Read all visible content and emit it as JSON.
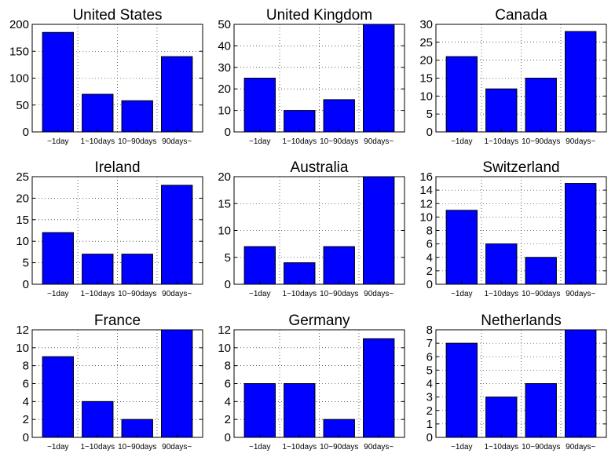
{
  "categories": [
    "~1day",
    "1~10days",
    "10~90days",
    "90days~"
  ],
  "bar_color": "#0000ff",
  "chart_data": [
    {
      "type": "bar",
      "title": "United States",
      "categories": [
        "~1day",
        "1~10days",
        "10~90days",
        "90days~"
      ],
      "values": [
        185,
        70,
        58,
        140
      ],
      "ylim": [
        0,
        200
      ],
      "yticks": [
        0,
        50,
        100,
        150,
        200
      ],
      "grid": true
    },
    {
      "type": "bar",
      "title": "United Kingdom",
      "categories": [
        "~1day",
        "1~10days",
        "10~90days",
        "90days~"
      ],
      "values": [
        25,
        10,
        15,
        50
      ],
      "ylim": [
        0,
        50
      ],
      "yticks": [
        0,
        10,
        20,
        30,
        40,
        50
      ],
      "grid": true
    },
    {
      "type": "bar",
      "title": "Canada",
      "categories": [
        "~1day",
        "1~10days",
        "10~90days",
        "90days~"
      ],
      "values": [
        21,
        12,
        15,
        28
      ],
      "ylim": [
        0,
        30
      ],
      "yticks": [
        0,
        5,
        10,
        15,
        20,
        25,
        30
      ],
      "grid": true
    },
    {
      "type": "bar",
      "title": "Ireland",
      "categories": [
        "~1day",
        "1~10days",
        "10~90days",
        "90days~"
      ],
      "values": [
        12,
        7,
        7,
        23
      ],
      "ylim": [
        0,
        25
      ],
      "yticks": [
        0,
        5,
        10,
        15,
        20,
        25
      ],
      "grid": true
    },
    {
      "type": "bar",
      "title": "Australia",
      "categories": [
        "~1day",
        "1~10days",
        "10~90days",
        "90days~"
      ],
      "values": [
        7,
        4,
        7,
        20
      ],
      "ylim": [
        0,
        20
      ],
      "yticks": [
        0,
        5,
        10,
        15,
        20
      ],
      "grid": true
    },
    {
      "type": "bar",
      "title": "Switzerland",
      "categories": [
        "~1day",
        "1~10days",
        "10~90days",
        "90days~"
      ],
      "values": [
        11,
        6,
        4,
        15
      ],
      "ylim": [
        0,
        16
      ],
      "yticks": [
        0,
        2,
        4,
        6,
        8,
        10,
        12,
        14,
        16
      ],
      "grid": true
    },
    {
      "type": "bar",
      "title": "France",
      "categories": [
        "~1day",
        "1~10days",
        "10~90days",
        "90days~"
      ],
      "values": [
        9,
        4,
        2,
        12
      ],
      "ylim": [
        0,
        12
      ],
      "yticks": [
        0,
        2,
        4,
        6,
        8,
        10,
        12
      ],
      "grid": true
    },
    {
      "type": "bar",
      "title": "Germany",
      "categories": [
        "~1day",
        "1~10days",
        "10~90days",
        "90days~"
      ],
      "values": [
        6,
        6,
        2,
        11
      ],
      "ylim": [
        0,
        12
      ],
      "yticks": [
        0,
        2,
        4,
        6,
        8,
        10,
        12
      ],
      "grid": true
    },
    {
      "type": "bar",
      "title": "Netherlands",
      "categories": [
        "~1day",
        "1~10days",
        "10~90days",
        "90days~"
      ],
      "values": [
        7,
        3,
        4,
        8
      ],
      "ylim": [
        0,
        8
      ],
      "yticks": [
        0,
        1,
        2,
        3,
        4,
        5,
        6,
        7,
        8
      ],
      "grid": true
    }
  ]
}
